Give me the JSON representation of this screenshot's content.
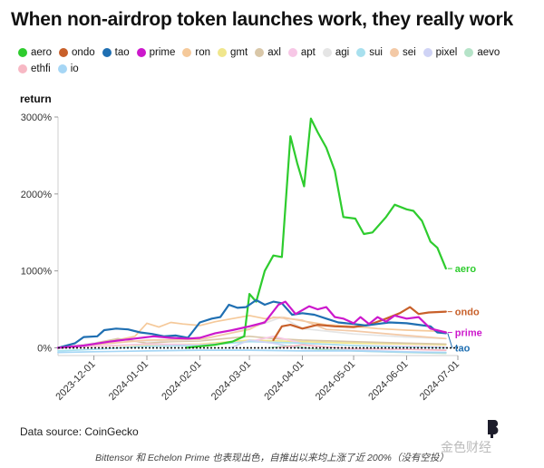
{
  "header": {
    "title": "When non-airdrop token launches work, they really work"
  },
  "footer": {
    "source": "Data source: CoinGecko",
    "caption": "Bittensor 和 Echelon Prime 也表现出色，自推出以来均上涨了近 200%（没有空投）",
    "logo_text": "金色财经"
  },
  "chart_data": {
    "type": "line",
    "title": "When non-airdrop token launches work, they really work",
    "ylabel": "return",
    "xlabel": "",
    "ylim": [
      -100,
      3000
    ],
    "yticks": [
      0,
      1000,
      2000,
      3000
    ],
    "ytick_labels": [
      "0%",
      "1000%",
      "2000%",
      "3000%"
    ],
    "xlim": [
      "2023-11-10",
      "2024-07-01"
    ],
    "xticks": [
      "2023-12-01",
      "2024-01-01",
      "2024-02-01",
      "2024-03-01",
      "2024-04-01",
      "2024-05-01",
      "2024-06-01",
      "2024-07-01"
    ],
    "grid": false,
    "zero_line": "dotted",
    "legend_position": "top",
    "series": [
      {
        "name": "aero",
        "color": "#2ecc2e",
        "width": 2.2,
        "end_label": "aero",
        "points": [
          [
            "2024-01-24",
            0
          ],
          [
            "2024-02-01",
            20
          ],
          [
            "2024-02-10",
            40
          ],
          [
            "2024-02-20",
            80
          ],
          [
            "2024-02-27",
            150
          ],
          [
            "2024-03-01",
            700
          ],
          [
            "2024-03-05",
            600
          ],
          [
            "2024-03-10",
            1000
          ],
          [
            "2024-03-15",
            1200
          ],
          [
            "2024-03-20",
            1180
          ],
          [
            "2024-03-25",
            2750
          ],
          [
            "2024-03-29",
            2400
          ],
          [
            "2024-04-02",
            2100
          ],
          [
            "2024-04-06",
            2980
          ],
          [
            "2024-04-10",
            2800
          ],
          [
            "2024-04-15",
            2600
          ],
          [
            "2024-04-20",
            2300
          ],
          [
            "2024-04-25",
            1700
          ],
          [
            "2024-05-02",
            1680
          ],
          [
            "2024-05-07",
            1480
          ],
          [
            "2024-05-12",
            1500
          ],
          [
            "2024-05-20",
            1700
          ],
          [
            "2024-05-25",
            1860
          ],
          [
            "2024-06-01",
            1800
          ],
          [
            "2024-06-05",
            1780
          ],
          [
            "2024-06-10",
            1650
          ],
          [
            "2024-06-15",
            1380
          ],
          [
            "2024-06-19",
            1300
          ],
          [
            "2024-06-24",
            1030
          ]
        ]
      },
      {
        "name": "ondo",
        "color": "#c8602a",
        "width": 2.2,
        "end_label": "ondo",
        "points": [
          [
            "2024-03-15",
            100
          ],
          [
            "2024-03-20",
            280
          ],
          [
            "2024-03-25",
            300
          ],
          [
            "2024-04-01",
            250
          ],
          [
            "2024-04-10",
            300
          ],
          [
            "2024-04-20",
            280
          ],
          [
            "2024-05-01",
            270
          ],
          [
            "2024-05-10",
            300
          ],
          [
            "2024-05-20",
            380
          ],
          [
            "2024-05-28",
            450
          ],
          [
            "2024-06-03",
            530
          ],
          [
            "2024-06-08",
            440
          ],
          [
            "2024-06-14",
            460
          ],
          [
            "2024-06-24",
            470
          ]
        ]
      },
      {
        "name": "tao",
        "color": "#1f6fb2",
        "width": 2.2,
        "end_label": "tao",
        "points": [
          [
            "2023-11-10",
            0
          ],
          [
            "2023-11-20",
            60
          ],
          [
            "2023-11-25",
            140
          ],
          [
            "2023-12-03",
            150
          ],
          [
            "2023-12-07",
            230
          ],
          [
            "2023-12-14",
            250
          ],
          [
            "2023-12-21",
            240
          ],
          [
            "2023-12-28",
            200
          ],
          [
            "2024-01-04",
            180
          ],
          [
            "2024-01-11",
            150
          ],
          [
            "2024-01-18",
            160
          ],
          [
            "2024-01-25",
            130
          ],
          [
            "2024-02-01",
            330
          ],
          [
            "2024-02-08",
            380
          ],
          [
            "2024-02-13",
            400
          ],
          [
            "2024-02-18",
            560
          ],
          [
            "2024-02-23",
            520
          ],
          [
            "2024-02-28",
            530
          ],
          [
            "2024-03-05",
            620
          ],
          [
            "2024-03-10",
            560
          ],
          [
            "2024-03-15",
            600
          ],
          [
            "2024-03-20",
            580
          ],
          [
            "2024-03-26",
            430
          ],
          [
            "2024-04-01",
            450
          ],
          [
            "2024-04-08",
            430
          ],
          [
            "2024-04-15",
            380
          ],
          [
            "2024-04-22",
            330
          ],
          [
            "2024-05-01",
            310
          ],
          [
            "2024-05-08",
            290
          ],
          [
            "2024-05-15",
            310
          ],
          [
            "2024-05-22",
            330
          ],
          [
            "2024-06-01",
            320
          ],
          [
            "2024-06-08",
            300
          ],
          [
            "2024-06-15",
            280
          ],
          [
            "2024-06-19",
            200
          ],
          [
            "2024-06-24",
            190
          ]
        ]
      },
      {
        "name": "prime",
        "color": "#cc18cc",
        "width": 2.2,
        "end_label": "prime",
        "points": [
          [
            "2023-11-10",
            0
          ],
          [
            "2023-11-25",
            30
          ],
          [
            "2023-12-10",
            80
          ],
          [
            "2023-12-25",
            120
          ],
          [
            "2024-01-05",
            150
          ],
          [
            "2024-01-15",
            130
          ],
          [
            "2024-01-25",
            120
          ],
          [
            "2024-02-01",
            130
          ],
          [
            "2024-02-10",
            190
          ],
          [
            "2024-02-20",
            230
          ],
          [
            "2024-03-01",
            280
          ],
          [
            "2024-03-10",
            330
          ],
          [
            "2024-03-18",
            560
          ],
          [
            "2024-03-22",
            600
          ],
          [
            "2024-03-28",
            440
          ],
          [
            "2024-04-05",
            540
          ],
          [
            "2024-04-10",
            500
          ],
          [
            "2024-04-15",
            530
          ],
          [
            "2024-04-20",
            400
          ],
          [
            "2024-04-25",
            380
          ],
          [
            "2024-05-01",
            320
          ],
          [
            "2024-05-05",
            400
          ],
          [
            "2024-05-10",
            310
          ],
          [
            "2024-05-15",
            400
          ],
          [
            "2024-05-20",
            340
          ],
          [
            "2024-05-25",
            420
          ],
          [
            "2024-06-01",
            380
          ],
          [
            "2024-06-08",
            400
          ],
          [
            "2024-06-15",
            250
          ],
          [
            "2024-06-24",
            200
          ]
        ]
      },
      {
        "name": "ron",
        "color": "#f5c99a",
        "width": 1.7,
        "points": [
          [
            "2023-11-10",
            0
          ],
          [
            "2023-11-25",
            40
          ],
          [
            "2023-12-10",
            80
          ],
          [
            "2023-12-25",
            150
          ],
          [
            "2024-01-01",
            320
          ],
          [
            "2024-01-08",
            270
          ],
          [
            "2024-01-15",
            330
          ],
          [
            "2024-01-22",
            310
          ],
          [
            "2024-02-01",
            290
          ],
          [
            "2024-02-10",
            340
          ],
          [
            "2024-02-20",
            380
          ],
          [
            "2024-03-01",
            420
          ],
          [
            "2024-03-10",
            380
          ],
          [
            "2024-03-20",
            400
          ],
          [
            "2024-04-01",
            350
          ],
          [
            "2024-04-15",
            300
          ],
          [
            "2024-05-01",
            280
          ],
          [
            "2024-05-15",
            250
          ],
          [
            "2024-06-01",
            230
          ],
          [
            "2024-06-15",
            220
          ],
          [
            "2024-06-24",
            210
          ]
        ]
      },
      {
        "name": "gmt",
        "color": "#f0e68c",
        "width": 1.7,
        "points": [
          [
            "2023-11-10",
            0
          ],
          [
            "2023-12-01",
            20
          ],
          [
            "2024-01-01",
            40
          ],
          [
            "2024-02-01",
            50
          ],
          [
            "2024-03-01",
            100
          ],
          [
            "2024-04-01",
            80
          ],
          [
            "2024-05-01",
            60
          ],
          [
            "2024-06-01",
            50
          ],
          [
            "2024-06-24",
            40
          ]
        ]
      },
      {
        "name": "axl",
        "color": "#d9c7a8",
        "width": 1.7,
        "points": [
          [
            "2023-11-10",
            0
          ],
          [
            "2023-12-01",
            60
          ],
          [
            "2023-12-15",
            120
          ],
          [
            "2024-01-01",
            60
          ],
          [
            "2024-01-15",
            80
          ],
          [
            "2024-02-01",
            90
          ],
          [
            "2024-03-01",
            150
          ],
          [
            "2024-03-15",
            120
          ],
          [
            "2024-04-01",
            100
          ],
          [
            "2024-05-01",
            80
          ],
          [
            "2024-06-01",
            60
          ],
          [
            "2024-06-24",
            50
          ]
        ]
      },
      {
        "name": "apt",
        "color": "#f7c7e6",
        "width": 1.7,
        "points": [
          [
            "2023-11-10",
            0
          ],
          [
            "2023-12-01",
            20
          ],
          [
            "2024-01-01",
            50
          ],
          [
            "2024-02-01",
            40
          ],
          [
            "2024-03-01",
            80
          ],
          [
            "2024-03-15",
            150
          ],
          [
            "2024-04-01",
            60
          ],
          [
            "2024-05-01",
            30
          ],
          [
            "2024-06-01",
            20
          ],
          [
            "2024-06-24",
            10
          ]
        ]
      },
      {
        "name": "agi",
        "color": "#e5e5e5",
        "width": 1.7,
        "points": [
          [
            "2023-11-10",
            0
          ],
          [
            "2023-12-01",
            60
          ],
          [
            "2024-01-01",
            90
          ],
          [
            "2024-02-01",
            100
          ],
          [
            "2024-03-01",
            250
          ],
          [
            "2024-03-20",
            400
          ],
          [
            "2024-04-01",
            250
          ],
          [
            "2024-05-01",
            180
          ],
          [
            "2024-06-01",
            140
          ],
          [
            "2024-06-24",
            120
          ]
        ]
      },
      {
        "name": "sui",
        "color": "#a8e0ee",
        "width": 1.7,
        "points": [
          [
            "2023-11-10",
            -40
          ],
          [
            "2023-12-01",
            -20
          ],
          [
            "2024-01-01",
            20
          ],
          [
            "2024-02-01",
            30
          ],
          [
            "2024-03-01",
            80
          ],
          [
            "2024-04-01",
            60
          ],
          [
            "2024-05-01",
            30
          ],
          [
            "2024-06-01",
            10
          ],
          [
            "2024-06-24",
            0
          ]
        ]
      },
      {
        "name": "sei",
        "color": "#f3c9a6",
        "width": 1.7,
        "points": [
          [
            "2023-11-10",
            0
          ],
          [
            "2023-12-01",
            40
          ],
          [
            "2024-01-01",
            100
          ],
          [
            "2024-02-01",
            110
          ],
          [
            "2024-03-01",
            240
          ],
          [
            "2024-03-15",
            400
          ],
          [
            "2024-04-01",
            360
          ],
          [
            "2024-04-15",
            240
          ],
          [
            "2024-05-01",
            220
          ],
          [
            "2024-06-01",
            160
          ],
          [
            "2024-06-24",
            120
          ]
        ]
      },
      {
        "name": "pixel",
        "color": "#cfd3f5",
        "width": 1.7,
        "points": [
          [
            "2024-02-19",
            0
          ],
          [
            "2024-03-01",
            100
          ],
          [
            "2024-03-15",
            60
          ],
          [
            "2024-04-01",
            -10
          ],
          [
            "2024-05-01",
            -30
          ],
          [
            "2024-06-01",
            -50
          ],
          [
            "2024-06-24",
            -60
          ]
        ]
      },
      {
        "name": "aevo",
        "color": "#b5e3c8",
        "width": 1.7,
        "points": [
          [
            "2024-03-13",
            0
          ],
          [
            "2024-03-25",
            30
          ],
          [
            "2024-04-10",
            -20
          ],
          [
            "2024-05-01",
            -40
          ],
          [
            "2024-06-01",
            -60
          ],
          [
            "2024-06-24",
            -70
          ]
        ]
      },
      {
        "name": "ethfi",
        "color": "#f7b8c4",
        "width": 1.7,
        "points": [
          [
            "2024-03-18",
            0
          ],
          [
            "2024-04-01",
            40
          ],
          [
            "2024-04-15",
            10
          ],
          [
            "2024-05-01",
            -10
          ],
          [
            "2024-06-01",
            -20
          ],
          [
            "2024-06-24",
            -30
          ]
        ]
      },
      {
        "name": "io",
        "color": "#a6d6f5",
        "width": 1.7,
        "points": [
          [
            "2023-11-10",
            -60
          ],
          [
            "2023-12-01",
            -50
          ],
          [
            "2024-01-01",
            -40
          ],
          [
            "2024-02-01",
            -30
          ],
          [
            "2024-03-01",
            -30
          ],
          [
            "2024-04-01",
            -40
          ],
          [
            "2024-05-01",
            -40
          ],
          [
            "2024-06-11",
            -60
          ],
          [
            "2024-06-24",
            -60
          ]
        ]
      }
    ]
  }
}
